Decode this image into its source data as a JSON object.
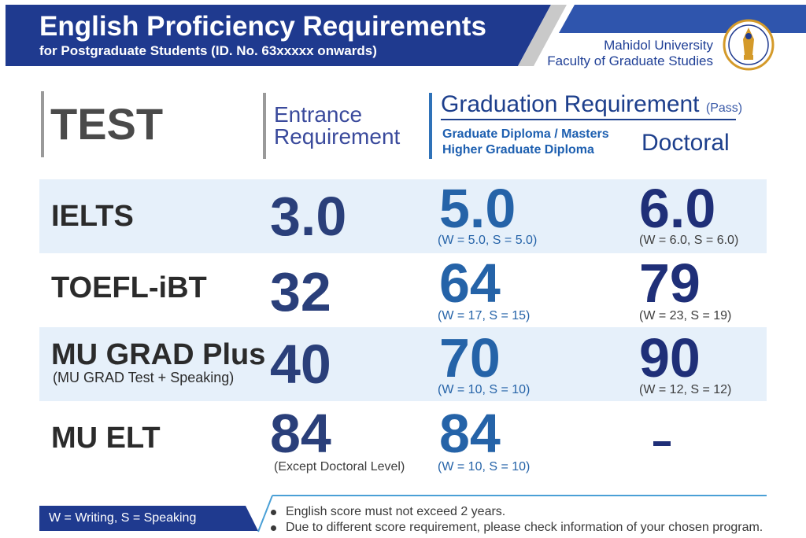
{
  "header": {
    "title": "English Proficiency Requirements",
    "subtitle": "for Postgraduate Students (ID. No. 63xxxxx onwards)",
    "university": "Mahidol University",
    "faculty": "Faculty of Graduate Studies",
    "seal_icon": "mahidol-university-seal"
  },
  "colors": {
    "header_navy": "#1f3a8f",
    "header_blue": "#2f55ad",
    "row_shade": "#e6f0fa",
    "score_blue": "#2563a8",
    "score_navy": "#1f2f78"
  },
  "columns": {
    "test": "TEST",
    "entrance_line1": "Entrance",
    "entrance_line2": "Requirement",
    "graduation": "Graduation Requirement",
    "pass": "(Pass)",
    "masters_line1": "Graduate Diploma / Masters",
    "masters_line2": "Higher Graduate Diploma",
    "doctoral": "Doctoral"
  },
  "rows": [
    {
      "test": "IELTS",
      "sub": "",
      "entrance": "3.0",
      "entrance_note": "",
      "masters": "5.0",
      "masters_note": "(W = 5.0, S = 5.0)",
      "doctoral": "6.0",
      "doctoral_note": "(W = 6.0, S = 6.0)"
    },
    {
      "test": "TOEFL-iBT",
      "sub": "",
      "entrance": "32",
      "entrance_note": "",
      "masters": "64",
      "masters_note": "(W = 17, S = 15)",
      "doctoral": "79",
      "doctoral_note": "(W = 23, S = 19)"
    },
    {
      "test": "MU GRAD Plus",
      "sub": "(MU GRAD Test + Speaking)",
      "entrance": "40",
      "entrance_note": "",
      "masters": "70",
      "masters_note": "(W = 10, S = 10)",
      "doctoral": "90",
      "doctoral_note": "(W = 12, S = 12)"
    },
    {
      "test": "MU ELT",
      "sub": "",
      "entrance": "84",
      "entrance_note": "(Except Doctoral Level)",
      "masters": "84",
      "masters_note": "(W = 10, S = 10)",
      "doctoral": "-",
      "doctoral_note": ""
    }
  ],
  "footer": {
    "legend": "W = Writing, S =  Speaking",
    "notes": [
      "English score must not exceed 2 years.",
      "Due to different score requirement, please check information of your chosen program."
    ]
  }
}
